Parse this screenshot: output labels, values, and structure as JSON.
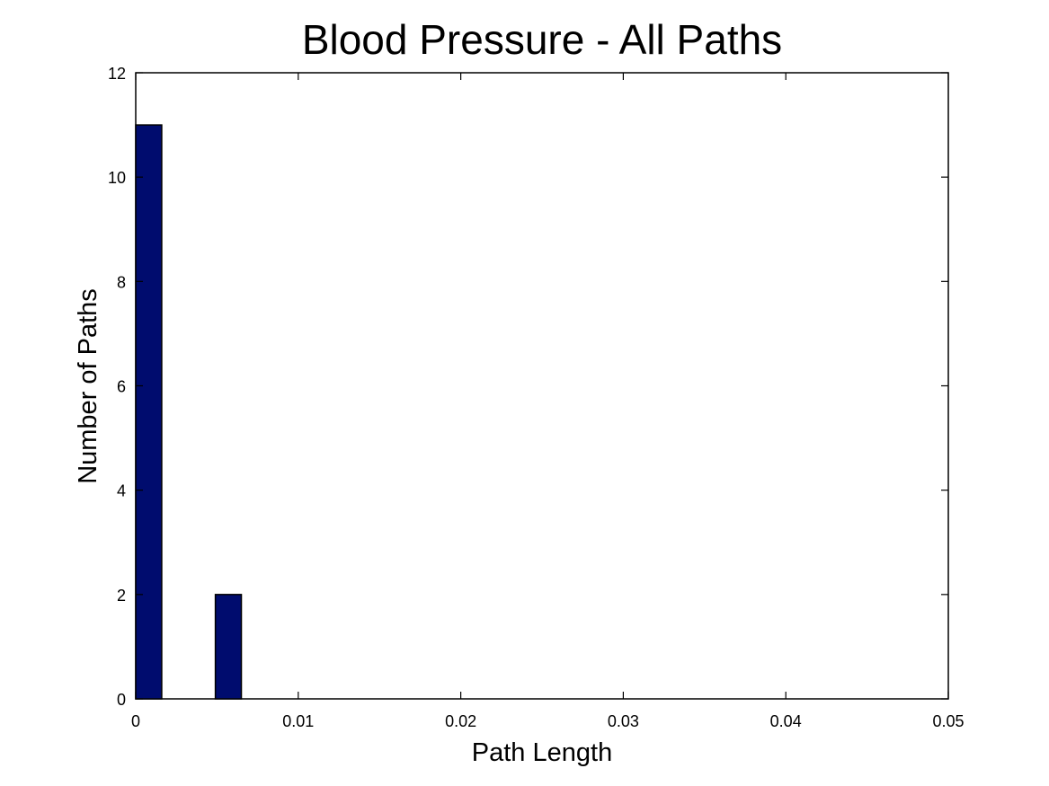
{
  "chart_data": {
    "type": "bar",
    "title": "Blood Pressure - All Paths",
    "xlabel": "Path Length",
    "ylabel": "Number of Paths",
    "xlim": [
      0,
      0.05
    ],
    "ylim": [
      0,
      12
    ],
    "xticks": [
      "0",
      "0.01",
      "0.02",
      "0.03",
      "0.04",
      "0.05"
    ],
    "yticks": [
      "0",
      "2",
      "4",
      "6",
      "8",
      "10",
      "12"
    ],
    "bin_width": 0.0016,
    "bars": [
      {
        "x": 0.0008,
        "value": 11
      },
      {
        "x": 0.0057,
        "value": 2
      }
    ],
    "bar_color": "#000c6e",
    "grid": false,
    "legend": "none"
  }
}
